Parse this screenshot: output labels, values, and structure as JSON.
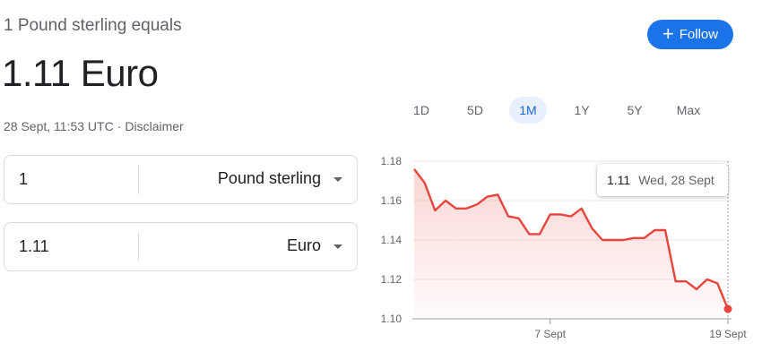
{
  "header": {
    "subtitle": "1 Pound sterling equals",
    "rate_value": "1.11 Euro",
    "timestamp": "28 Sept, 11:53 UTC",
    "separator": "·",
    "disclaimer": "Disclaimer"
  },
  "follow": {
    "icon": "+",
    "label": "Follow"
  },
  "converter": {
    "from": {
      "amount": "1",
      "currency": "Pound sterling"
    },
    "to": {
      "amount": "1.11",
      "currency": "Euro"
    }
  },
  "range_tabs": [
    {
      "label": "1D",
      "active": false
    },
    {
      "label": "5D",
      "active": false
    },
    {
      "label": "1M",
      "active": true
    },
    {
      "label": "1Y",
      "active": false
    },
    {
      "label": "5Y",
      "active": false
    },
    {
      "label": "Max",
      "active": false
    }
  ],
  "tooltip": {
    "value": "1.11",
    "date": "Wed, 28 Sept"
  },
  "colors": {
    "line": "#e8453c",
    "accent": "#1a73e8",
    "grid": "#ebebeb"
  },
  "chart_data": {
    "type": "area",
    "ylim": [
      1.1,
      1.18
    ],
    "y_ticks": [
      "1.18",
      "1.16",
      "1.14",
      "1.12",
      "1.10"
    ],
    "x_ticks": [
      {
        "label": "7 Sept",
        "index": 13
      },
      {
        "label": "19 Sept",
        "index": 30
      }
    ],
    "grid": true,
    "series": [
      {
        "values": [
          1.176,
          1.169,
          1.155,
          1.16,
          1.156,
          1.156,
          1.158,
          1.162,
          1.163,
          1.152,
          1.151,
          1.143,
          1.143,
          1.153,
          1.153,
          1.152,
          1.156,
          1.146,
          1.14,
          1.14,
          1.14,
          1.141,
          1.141,
          1.145,
          1.145,
          1.119,
          1.119,
          1.115,
          1.12,
          1.118,
          1.105
        ]
      }
    ]
  }
}
